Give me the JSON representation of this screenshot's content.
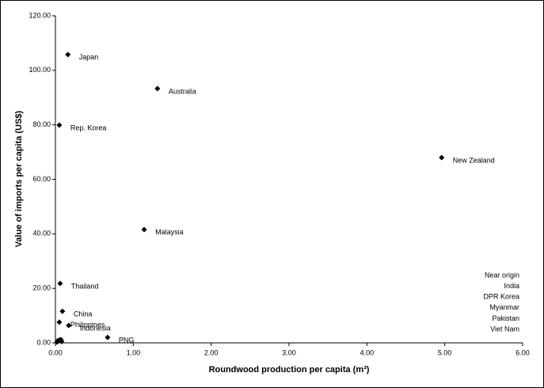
{
  "chart_data": {
    "type": "scatter",
    "x_label": "Roundwood production per capita (m³)",
    "y_label": "Value of imports per capita (US$)",
    "series": [
      {
        "color": "#000000",
        "labels": [
          "Japan",
          "Australia",
          "Rep. Korea",
          "New Zealand",
          "Malaysia",
          "Thailand",
          "China",
          "Philippines",
          "Indonesia",
          "PNG",
          null,
          null,
          null,
          null,
          null
        ],
        "x": [
          0.16,
          1.31,
          0.05,
          4.96,
          1.14,
          0.06,
          0.09,
          0.05,
          0.17,
          0.67,
          0.03,
          0.07,
          0.08,
          0.02,
          0.05
        ],
        "values": [
          105.8,
          93.3,
          79.9,
          68.0,
          41.6,
          21.8,
          11.6,
          7.6,
          6.4,
          2.0,
          0.8,
          1.2,
          0.5,
          0.3,
          1.0
        ]
      }
    ],
    "annotation": [
      "Near origin",
      "India",
      "DPR Korea",
      "Myanmar",
      "Pakistan",
      "Viet Nam"
    ],
    "xlim": [
      0,
      6
    ],
    "ylim": [
      0,
      120
    ],
    "xticks": [
      {
        "value": 0,
        "label": "0.00"
      },
      {
        "value": 1,
        "label": "1.00"
      },
      {
        "value": 2,
        "label": "2.00"
      },
      {
        "value": 3,
        "label": "3.00"
      },
      {
        "value": 4,
        "label": "4.00"
      },
      {
        "value": 5,
        "label": "5.00"
      },
      {
        "value": 6,
        "label": "6.00"
      }
    ],
    "yticks": [
      {
        "value": 0,
        "label": "0.00"
      },
      {
        "value": 20,
        "label": "20.00"
      },
      {
        "value": 40,
        "label": "40.00"
      },
      {
        "value": 60,
        "label": "60.00"
      },
      {
        "value": 80,
        "label": "80.00"
      },
      {
        "value": 100,
        "label": "100.00"
      },
      {
        "value": 120,
        "label": "120.00"
      }
    ]
  }
}
